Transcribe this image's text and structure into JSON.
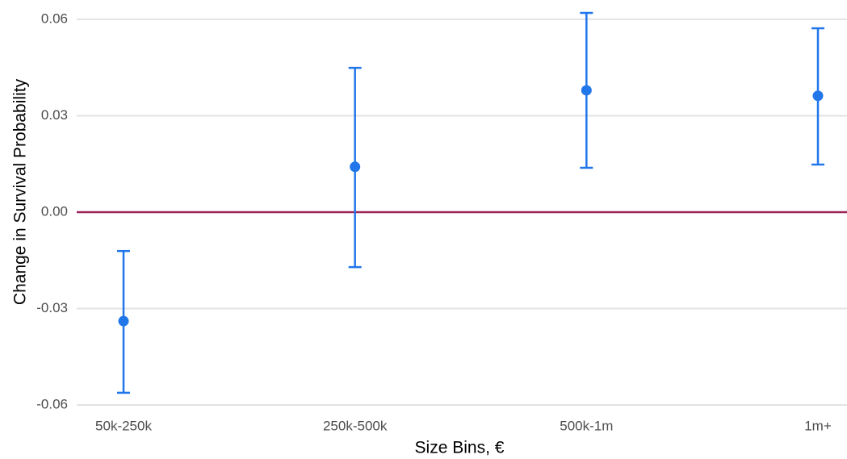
{
  "chart_data": {
    "type": "errorbar",
    "x_label": "Size Bins, €",
    "y_label": "Change in Survival Probability",
    "categories": [
      "50k-250k",
      "250k-500k",
      "500k-1m",
      "1m+"
    ],
    "values": [
      -0.0339,
      0.0141,
      0.0379,
      0.0362
    ],
    "lower": [
      -0.0562,
      -0.0171,
      0.0138,
      0.0148
    ],
    "upper": [
      -0.0121,
      0.0449,
      0.062,
      0.0572
    ],
    "color": "#2176ea",
    "ylim": [
      -0.063,
      0.066
    ],
    "yticks": [
      -0.06,
      -0.03,
      {
        "value": 0,
        "label": "0.00"
      },
      0.03,
      0.06
    ],
    "grid": true,
    "reference_line": {
      "value": 0,
      "color": "#9b2257"
    }
  }
}
